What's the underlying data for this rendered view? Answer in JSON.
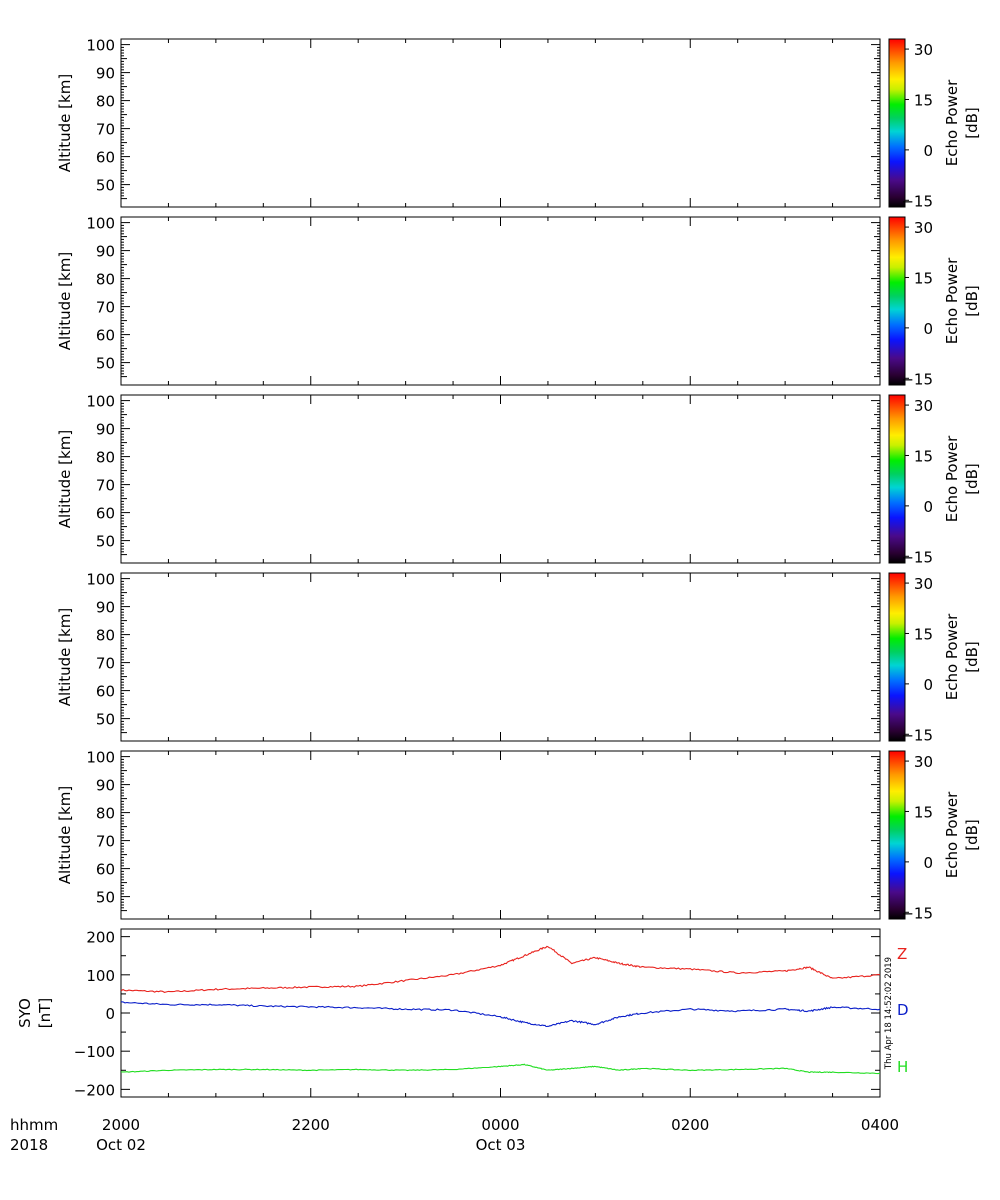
{
  "chart_data": [
    {
      "type": "heatmap",
      "panel": 1,
      "ylabel": "Altitude [km]",
      "yticks": [
        50,
        60,
        70,
        80,
        90,
        100
      ],
      "ylim": [
        42,
        102
      ],
      "colorbar": {
        "label_line1": "Echo Power",
        "label_line2": "[dB]",
        "ticks": [
          30,
          15,
          0,
          -15
        ],
        "range": [
          -17,
          33
        ]
      }
    },
    {
      "type": "heatmap",
      "panel": 2,
      "ylabel": "Altitude [km]",
      "yticks": [
        50,
        60,
        70,
        80,
        90,
        100
      ],
      "ylim": [
        42,
        102
      ],
      "colorbar": {
        "label_line1": "Echo Power",
        "label_line2": "[dB]",
        "ticks": [
          30,
          15,
          0,
          -15
        ],
        "range": [
          -17,
          33
        ]
      }
    },
    {
      "type": "heatmap",
      "panel": 3,
      "ylabel": "Altitude [km]",
      "yticks": [
        50,
        60,
        70,
        80,
        90,
        100
      ],
      "ylim": [
        42,
        102
      ],
      "colorbar": {
        "label_line1": "Echo Power",
        "label_line2": "[dB]",
        "ticks": [
          30,
          15,
          0,
          -15
        ],
        "range": [
          -17,
          33
        ]
      }
    },
    {
      "type": "heatmap",
      "panel": 4,
      "ylabel": "Altitude [km]",
      "yticks": [
        50,
        60,
        70,
        80,
        90,
        100
      ],
      "ylim": [
        42,
        102
      ],
      "colorbar": {
        "label_line1": "Echo Power",
        "label_line2": "[dB]",
        "ticks": [
          30,
          15,
          0,
          -15
        ],
        "range": [
          -17,
          33
        ]
      }
    },
    {
      "type": "heatmap",
      "panel": 5,
      "ylabel": "Altitude [km]",
      "yticks": [
        50,
        60,
        70,
        80,
        90,
        100
      ],
      "ylim": [
        42,
        102
      ],
      "colorbar": {
        "label_line1": "Echo Power",
        "label_line2": "[dB]",
        "ticks": [
          30,
          15,
          0,
          -15
        ],
        "range": [
          -17,
          33
        ]
      }
    },
    {
      "type": "line",
      "panel": 6,
      "ylabel_line1": "SYO",
      "ylabel_line2": "[nT]",
      "yticks": [
        200,
        100,
        0,
        -100,
        -200
      ],
      "ylim": [
        -220,
        220
      ],
      "x": [
        "2018-10-02T20:00",
        "2018-10-02T20:30",
        "2018-10-02T21:00",
        "2018-10-02T21:30",
        "2018-10-02T22:00",
        "2018-10-02T22:30",
        "2018-10-02T23:00",
        "2018-10-02T23:30",
        "2018-10-03T00:00",
        "2018-10-03T00:15",
        "2018-10-03T00:30",
        "2018-10-03T00:45",
        "2018-10-03T01:00",
        "2018-10-03T01:15",
        "2018-10-03T01:30",
        "2018-10-03T02:00",
        "2018-10-03T02:30",
        "2018-10-03T03:00",
        "2018-10-03T03:15",
        "2018-10-03T03:30",
        "2018-10-03T04:00"
      ],
      "series": [
        {
          "name": "Z",
          "color": "#e8231e",
          "values": [
            60,
            55,
            62,
            65,
            68,
            70,
            85,
            100,
            125,
            150,
            175,
            130,
            145,
            130,
            120,
            115,
            105,
            110,
            120,
            90,
            100
          ]
        },
        {
          "name": "D",
          "color": "#0b1fc9",
          "values": [
            28,
            22,
            22,
            18,
            16,
            14,
            10,
            8,
            -10,
            -25,
            -35,
            -20,
            -30,
            -10,
            0,
            10,
            5,
            10,
            5,
            15,
            10
          ]
        },
        {
          "name": "H",
          "color": "#22dd22",
          "values": [
            -155,
            -150,
            -148,
            -148,
            -150,
            -148,
            -150,
            -148,
            -140,
            -135,
            -150,
            -145,
            -140,
            -150,
            -145,
            -150,
            -148,
            -145,
            -155,
            -155,
            -158
          ]
        }
      ]
    }
  ],
  "xaxis": {
    "row_label_1": "hhmm",
    "row_label_2": "2018",
    "ticks": [
      {
        "time": "2000",
        "date": "Oct 02"
      },
      {
        "time": "2200",
        "date": ""
      },
      {
        "time": "0000",
        "date": "Oct 03"
      },
      {
        "time": "0200",
        "date": ""
      },
      {
        "time": "0400",
        "date": ""
      }
    ]
  },
  "timestamp": "Thu Apr 18 14:52:02 2019"
}
